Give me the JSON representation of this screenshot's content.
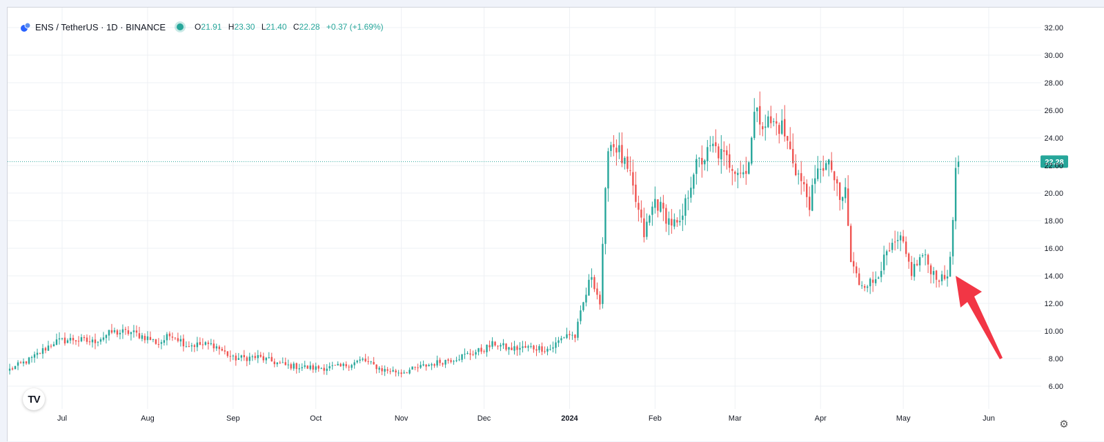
{
  "header": {
    "symbol": "ENS / TetherUS · 1D · BINANCE",
    "open_label": "O",
    "open": "21.91",
    "high_label": "H",
    "high": "23.30",
    "low_label": "L",
    "low": "21.40",
    "close_label": "C",
    "close": "22.28",
    "change": "+0.37 (+1.69%)"
  },
  "colors": {
    "up": "#26a69a",
    "down": "#ef5350",
    "arrow": "#f23645",
    "grid": "#eef0f4"
  },
  "icons": {
    "settings": "gear-icon",
    "brand": "tradingview-logo-icon",
    "coin": "ens-coin-icon"
  },
  "brand_logo_text": "TV",
  "last_price_label": "22.28",
  "chart_data": {
    "type": "candlestick",
    "title": "",
    "y_ticks": [
      "6.00",
      "8.00",
      "10.00",
      "12.00",
      "14.00",
      "16.00",
      "18.00",
      "20.00",
      "22.00",
      "24.00",
      "26.00",
      "28.00",
      "30.00",
      "32.00"
    ],
    "ylim": [
      5,
      33.5
    ],
    "x_ticks": [
      "Jul",
      "Aug",
      "Sep",
      "Oct",
      "Nov",
      "Dec",
      "2024",
      "Feb",
      "Mar",
      "Apr",
      "May",
      "Jun"
    ],
    "x_tick_dates": [
      "2023-07-01",
      "2023-08-01",
      "2023-09-01",
      "2023-10-01",
      "2023-11-01",
      "2023-12-01",
      "2024-01-01",
      "2024-02-01",
      "2024-03-01",
      "2024-04-01",
      "2024-05-01",
      "2024-06-01"
    ],
    "start_date": "2023-06-12",
    "last_date": "2024-05-21",
    "last_close": 22.28,
    "close_points": [
      [
        "2023-06-12",
        7.2
      ],
      [
        "2023-06-20",
        8.0
      ],
      [
        "2023-06-28",
        9.2
      ],
      [
        "2023-07-05",
        9.4
      ],
      [
        "2023-07-12",
        9.2
      ],
      [
        "2023-07-19",
        9.9
      ],
      [
        "2023-07-26",
        9.9
      ],
      [
        "2023-08-01",
        9.5
      ],
      [
        "2023-08-05",
        9.1
      ],
      [
        "2023-08-10",
        9.8
      ],
      [
        "2023-08-15",
        9.0
      ],
      [
        "2023-08-25",
        9.0
      ],
      [
        "2023-09-01",
        8.0
      ],
      [
        "2023-09-10",
        8.1
      ],
      [
        "2023-09-20",
        7.5
      ],
      [
        "2023-10-01",
        7.3
      ],
      [
        "2023-10-10",
        7.4
      ],
      [
        "2023-10-18",
        7.9
      ],
      [
        "2023-10-25",
        7.2
      ],
      [
        "2023-11-01",
        7.0
      ],
      [
        "2023-11-10",
        7.5
      ],
      [
        "2023-11-20",
        8.0
      ],
      [
        "2023-11-30",
        8.6
      ],
      [
        "2023-12-05",
        9.1
      ],
      [
        "2023-12-10",
        8.7
      ],
      [
        "2023-12-18",
        8.8
      ],
      [
        "2023-12-25",
        8.7
      ],
      [
        "2023-12-31",
        9.8
      ],
      [
        "2024-01-03",
        9.6
      ],
      [
        "2024-01-06",
        12.0
      ],
      [
        "2024-01-09",
        14.1
      ],
      [
        "2024-01-12",
        12.0
      ],
      [
        "2024-01-15",
        23.7
      ],
      [
        "2024-01-18",
        23.4
      ],
      [
        "2024-01-23",
        21.0
      ],
      [
        "2024-01-28",
        17.0
      ],
      [
        "2024-02-01",
        19.5
      ],
      [
        "2024-02-06",
        18.0
      ],
      [
        "2024-02-10",
        17.5
      ],
      [
        "2024-02-15",
        21.7
      ],
      [
        "2024-02-22",
        23.3
      ],
      [
        "2024-02-28",
        22.2
      ],
      [
        "2024-03-05",
        21.4
      ],
      [
        "2024-03-08",
        25.7
      ],
      [
        "2024-03-12",
        25.2
      ],
      [
        "2024-03-18",
        24.8
      ],
      [
        "2024-03-23",
        21.8
      ],
      [
        "2024-03-28",
        19.3
      ],
      [
        "2024-04-01",
        22.1
      ],
      [
        "2024-04-05",
        21.8
      ],
      [
        "2024-04-08",
        19.3
      ],
      [
        "2024-04-10",
        20.2
      ],
      [
        "2024-04-12",
        15.0
      ],
      [
        "2024-04-15",
        13.5
      ],
      [
        "2024-04-20",
        13.5
      ],
      [
        "2024-04-25",
        15.5
      ],
      [
        "2024-04-30",
        16.6
      ],
      [
        "2024-05-04",
        14.3
      ],
      [
        "2024-05-08",
        15.5
      ],
      [
        "2024-05-12",
        14.2
      ],
      [
        "2024-05-15",
        13.7
      ],
      [
        "2024-05-17",
        14.0
      ],
      [
        "2024-05-19",
        17.6
      ],
      [
        "2024-05-20",
        21.9
      ],
      [
        "2024-05-21",
        22.28
      ]
    ],
    "annotation": "arrow-pointing-up-left"
  }
}
